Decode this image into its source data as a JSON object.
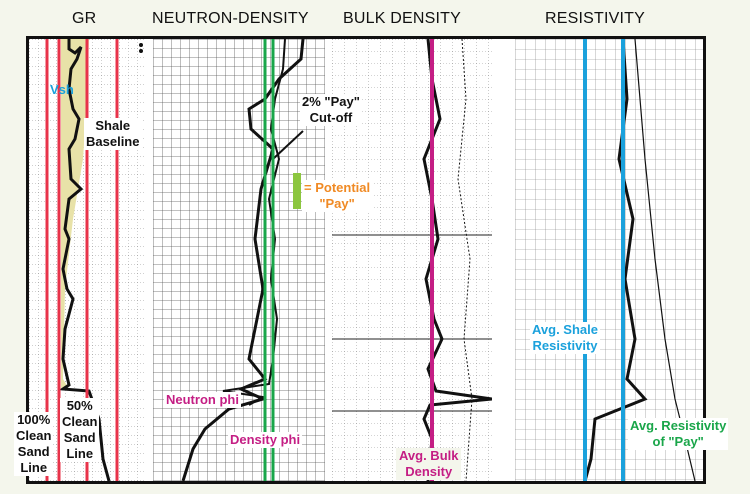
{
  "headers": {
    "gr": "GR",
    "neutron_density": "NEUTRON-DENSITY",
    "bulk_density": "BULK DENSITY",
    "resistivity": "RESISTIVITY"
  },
  "labels": {
    "vsh": "Vsh",
    "shale_baseline": [
      "Shale",
      "Baseline"
    ],
    "clean_sand_50": [
      "50%",
      "Clean",
      "Sand",
      "Line"
    ],
    "clean_sand_100": [
      "100%",
      "Clean",
      "Sand",
      "Line"
    ],
    "pay_cutoff": [
      "2% \"Pay\"",
      "Cut-off"
    ],
    "potential_pay": [
      "= Potential",
      "\"Pay\""
    ],
    "neutron_phi": "Neutron phi",
    "density_phi": "Density phi",
    "avg_bulk_density": [
      "Avg. Bulk",
      "Density"
    ],
    "avg_shale_resistivity": [
      "Avg. Shale",
      "Resistivity"
    ],
    "avg_resistivity_pay": [
      "Avg. Resistivity",
      "of \"Pay\""
    ]
  },
  "colors": {
    "red": "#e8334a",
    "green": "#1aa64a",
    "magenta": "#c41e84",
    "blue": "#1ba1dc",
    "orange": "#f08a24",
    "gr_fill": "#e8e2a8",
    "pay_fill": "#8cc63f"
  }
}
